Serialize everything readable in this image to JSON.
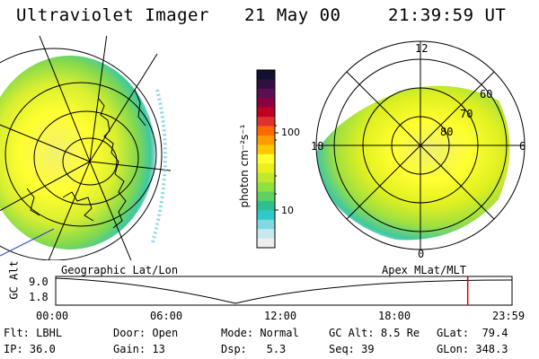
{
  "header": {
    "instrument": "Ultraviolet Imager",
    "date": "21 May 00",
    "time": "21:39:59 UT"
  },
  "colorbar": {
    "unit_label": "photon cm⁻²s⁻¹",
    "ticks": [
      "100",
      "10"
    ],
    "colors": [
      "#101030",
      "#301040",
      "#5a1050",
      "#8a0040",
      "#c00020",
      "#e03030",
      "#ff6a00",
      "#ff9a00",
      "#ffc800",
      "#ffff30",
      "#e8f020",
      "#c0e830",
      "#90e040",
      "#60d060",
      "#30c090",
      "#30c8c8",
      "#80d8e0",
      "#c8e8ee",
      "#eeeeee"
    ]
  },
  "left_map": {
    "label": "Geographic Lat/Lon"
  },
  "right_map": {
    "label": "Apex MLat/MLT",
    "mlt_labels": {
      "top": "12",
      "left": "18",
      "right": "6",
      "bottom": "0"
    },
    "lat_labels": [
      "60",
      "70",
      "80"
    ]
  },
  "altitude_plot": {
    "ylabel": "GC Alt",
    "yticks": [
      "9.0",
      "1.8"
    ],
    "xticks": [
      "00:00",
      "06:00",
      "12:00",
      "18:00",
      "23:59"
    ],
    "marker_time_hours": 21.67
  },
  "status": {
    "filter": {
      "label": "Flt:",
      "value": "LBHL"
    },
    "ip": {
      "label": "IP:",
      "value": "36.0"
    },
    "door": {
      "label": "Door:",
      "value": "Open"
    },
    "gain": {
      "label": "Gain:",
      "value": "13"
    },
    "mode": {
      "label": "Mode:",
      "value": "Normal"
    },
    "dsp": {
      "label": "Dsp:",
      "value": "5.3"
    },
    "gcalt": {
      "label": "GC Alt:",
      "value": "8.5 Re"
    },
    "seq": {
      "label": "Seq:",
      "value": "39"
    },
    "glat": {
      "label": "GLat:",
      "value": "79.4"
    },
    "glon": {
      "label": "GLon:",
      "value": "348.3"
    }
  }
}
